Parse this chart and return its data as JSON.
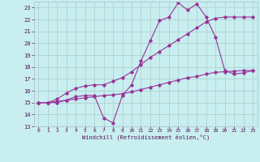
{
  "bg_color": "#c8eef0",
  "grid_color": "#aacccc",
  "line_color": "#993399",
  "xlim": [
    -0.5,
    23.5
  ],
  "ylim": [
    13,
    23.5
  ],
  "xticks": [
    0,
    1,
    2,
    3,
    4,
    5,
    6,
    7,
    8,
    9,
    10,
    11,
    12,
    13,
    14,
    15,
    16,
    17,
    18,
    19,
    20,
    21,
    22,
    23
  ],
  "yticks": [
    13,
    14,
    15,
    16,
    17,
    18,
    19,
    20,
    21,
    22,
    23
  ],
  "xlabel": "Windchill (Refroidissement éolien,°C)",
  "line1_x": [
    0,
    1,
    2,
    3,
    4,
    5,
    6,
    7,
    8,
    9,
    10,
    11,
    12,
    13,
    14,
    15,
    16,
    17,
    18,
    19,
    20,
    21,
    22,
    23
  ],
  "line1_y": [
    15,
    15,
    15,
    15.2,
    15.5,
    15.6,
    15.6,
    13.7,
    13.3,
    15.6,
    16.5,
    18.5,
    20.2,
    21.9,
    22.2,
    23.4,
    22.8,
    23.3,
    22.2,
    20.5,
    17.7,
    17.4,
    17.5,
    17.7
  ],
  "line2_x": [
    0,
    1,
    2,
    3,
    4,
    5,
    6,
    7,
    8,
    9,
    10,
    11,
    12,
    13,
    14,
    15,
    16,
    17,
    18,
    19,
    20,
    21,
    22,
    23
  ],
  "line2_y": [
    15,
    15,
    15.3,
    15.8,
    16.2,
    16.4,
    16.5,
    16.5,
    16.8,
    17.1,
    17.6,
    18.2,
    18.8,
    19.3,
    19.8,
    20.3,
    20.8,
    21.3,
    21.8,
    22.1,
    22.2,
    22.2,
    22.2,
    22.2
  ],
  "line3_x": [
    0,
    1,
    2,
    3,
    4,
    5,
    6,
    7,
    8,
    9,
    10,
    11,
    12,
    13,
    14,
    15,
    16,
    17,
    18,
    19,
    20,
    21,
    22,
    23
  ],
  "line3_y": [
    15,
    15,
    15.1,
    15.2,
    15.3,
    15.4,
    15.5,
    15.6,
    15.65,
    15.75,
    15.9,
    16.1,
    16.3,
    16.5,
    16.7,
    16.9,
    17.1,
    17.2,
    17.4,
    17.55,
    17.6,
    17.65,
    17.7,
    17.7
  ]
}
